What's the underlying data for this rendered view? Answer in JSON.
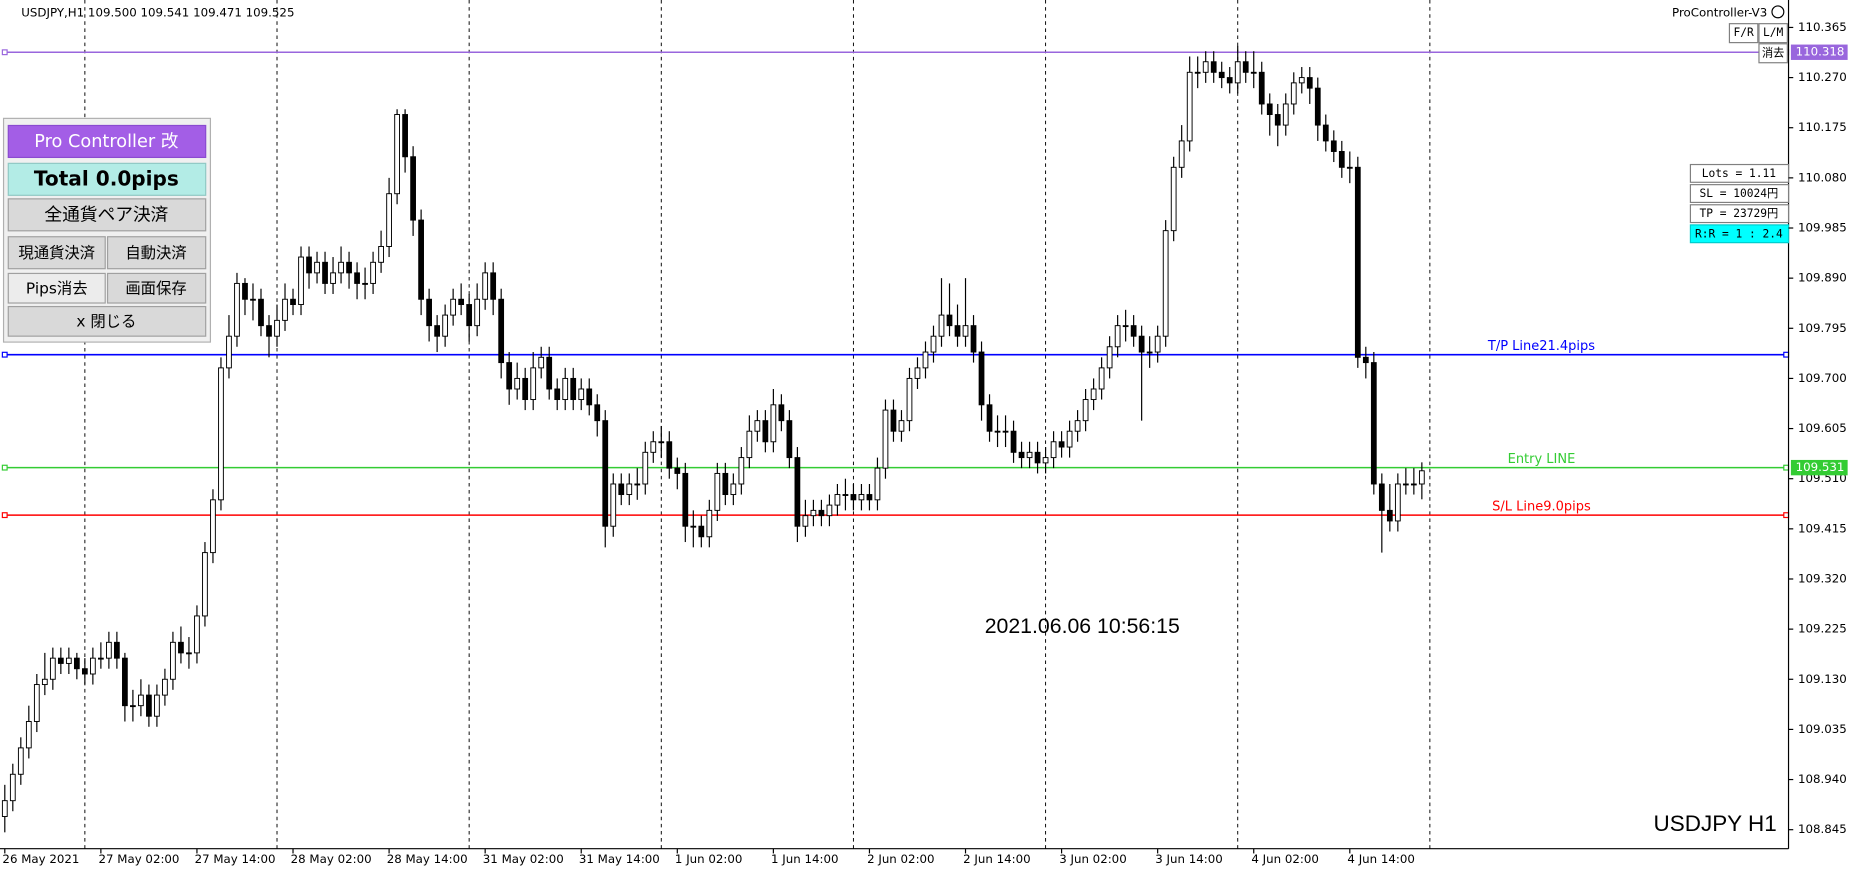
{
  "chart_data": {
    "type": "candlestick",
    "header": "USDJPY,H1  109.500 109.541 109.471 109.525",
    "timestamp": "2021.06.06 10:56:15",
    "watermark": "USDJPY H1",
    "up_color": "#ffffff",
    "down_color": "#000000",
    "grid": false,
    "open": [
      108.87,
      108.9,
      108.95,
      109.0,
      109.05,
      109.12,
      109.13,
      109.17,
      109.16,
      109.17,
      109.15,
      109.14,
      109.17,
      109.17,
      109.2,
      109.17,
      109.08,
      109.08,
      109.1,
      109.06,
      109.1,
      109.13,
      109.2,
      109.18,
      109.18,
      109.25,
      109.37,
      109.47,
      109.72,
      109.78,
      109.88,
      109.85,
      109.85,
      109.8,
      109.78,
      109.81,
      109.85,
      109.84,
      109.93,
      109.9,
      109.92,
      109.88,
      109.9,
      109.92,
      109.9,
      109.88,
      109.88,
      109.92,
      109.95,
      110.05,
      110.2,
      110.12,
      110.0,
      109.85,
      109.8,
      109.78,
      109.82,
      109.85,
      109.84,
      109.8,
      109.85,
      109.9,
      109.85,
      109.73,
      109.68,
      109.7,
      109.66,
      109.72,
      109.74,
      109.68,
      109.66,
      109.7,
      109.66,
      109.68,
      109.65,
      109.62,
      109.42,
      109.5,
      109.48,
      109.5,
      109.5,
      109.56,
      109.58,
      109.58,
      109.53,
      109.52,
      109.42,
      109.42,
      109.4,
      109.45,
      109.52,
      109.48,
      109.5,
      109.55,
      109.6,
      109.62,
      109.58,
      109.65,
      109.62,
      109.55,
      109.42,
      109.44,
      109.45,
      109.44,
      109.46,
      109.48,
      109.48,
      109.47,
      109.48,
      109.47,
      109.53,
      109.64,
      109.6,
      109.62,
      109.7,
      109.72,
      109.75,
      109.78,
      109.82,
      109.8,
      109.78,
      109.8,
      109.75,
      109.65,
      109.6,
      109.6,
      109.6,
      109.56,
      109.55,
      109.56,
      109.54,
      109.55,
      109.58,
      109.57,
      109.6,
      109.62,
      109.66,
      109.68,
      109.72,
      109.76,
      109.8,
      109.8,
      109.78,
      109.75,
      109.75,
      109.78,
      109.98,
      110.1,
      110.15,
      110.28,
      110.28,
      110.3,
      110.28,
      110.27,
      110.26,
      110.3,
      110.28,
      110.28,
      110.22,
      110.2,
      110.18,
      110.22,
      110.26,
      110.27,
      110.25,
      110.18,
      110.15,
      110.13,
      110.1,
      110.1,
      109.74,
      109.73,
      109.5,
      109.45,
      109.43,
      109.5,
      109.5,
      109.5
    ],
    "high": [
      108.93,
      108.97,
      109.02,
      109.08,
      109.14,
      109.18,
      109.19,
      109.19,
      109.19,
      109.18,
      109.17,
      109.19,
      109.2,
      109.22,
      109.22,
      109.18,
      109.11,
      109.13,
      109.12,
      109.12,
      109.15,
      109.22,
      109.23,
      109.21,
      109.27,
      109.39,
      109.49,
      109.74,
      109.82,
      109.9,
      109.89,
      109.88,
      109.87,
      109.82,
      109.84,
      109.88,
      109.87,
      109.95,
      109.95,
      109.94,
      109.94,
      109.93,
      109.95,
      109.94,
      109.92,
      109.91,
      109.94,
      109.98,
      110.08,
      110.21,
      110.21,
      110.14,
      110.02,
      109.87,
      109.82,
      109.84,
      109.87,
      109.88,
      109.86,
      109.88,
      109.92,
      109.92,
      109.87,
      109.75,
      109.73,
      109.72,
      109.75,
      109.76,
      109.76,
      109.7,
      109.72,
      109.72,
      109.7,
      109.7,
      109.67,
      109.64,
      109.52,
      109.52,
      109.52,
      109.53,
      109.58,
      109.6,
      109.61,
      109.6,
      109.55,
      109.54,
      109.45,
      109.44,
      109.47,
      109.54,
      109.54,
      109.52,
      109.57,
      109.63,
      109.64,
      109.64,
      109.68,
      109.67,
      109.64,
      109.57,
      109.47,
      109.47,
      109.47,
      109.48,
      109.5,
      109.51,
      109.5,
      109.5,
      109.5,
      109.55,
      109.66,
      109.66,
      109.64,
      109.72,
      109.74,
      109.77,
      109.8,
      109.89,
      109.88,
      109.84,
      109.89,
      109.82,
      109.77,
      109.67,
      109.63,
      109.63,
      109.62,
      109.58,
      109.58,
      109.58,
      109.57,
      109.6,
      109.6,
      109.62,
      109.64,
      109.68,
      109.7,
      109.74,
      109.78,
      109.82,
      109.83,
      109.82,
      109.8,
      109.78,
      109.8,
      110.0,
      110.12,
      110.18,
      110.31,
      110.31,
      110.32,
      110.32,
      110.3,
      110.29,
      110.33,
      110.32,
      110.32,
      110.3,
      110.24,
      110.22,
      110.24,
      110.28,
      110.29,
      110.29,
      110.27,
      110.2,
      110.17,
      110.15,
      110.13,
      110.12,
      109.76,
      109.75,
      109.52,
      109.5,
      109.52,
      109.53,
      109.53,
      109.541
    ],
    "low": [
      108.84,
      108.88,
      108.93,
      108.98,
      109.03,
      109.1,
      109.11,
      109.14,
      109.14,
      109.13,
      109.12,
      109.12,
      109.15,
      109.15,
      109.15,
      109.05,
      109.05,
      109.06,
      109.04,
      109.04,
      109.08,
      109.11,
      109.16,
      109.15,
      109.16,
      109.23,
      109.35,
      109.45,
      109.7,
      109.76,
      109.82,
      109.81,
      109.78,
      109.74,
      109.76,
      109.79,
      109.82,
      109.82,
      109.87,
      109.88,
      109.86,
      109.86,
      109.88,
      109.87,
      109.85,
      109.85,
      109.86,
      109.9,
      109.93,
      110.03,
      110.09,
      109.97,
      109.82,
      109.77,
      109.75,
      109.76,
      109.8,
      109.82,
      109.77,
      109.78,
      109.83,
      109.82,
      109.7,
      109.65,
      109.66,
      109.64,
      109.64,
      109.7,
      109.66,
      109.64,
      109.64,
      109.64,
      109.64,
      109.63,
      109.59,
      109.38,
      109.4,
      109.46,
      109.46,
      109.47,
      109.48,
      109.54,
      109.55,
      109.51,
      109.49,
      109.39,
      109.38,
      109.38,
      109.38,
      109.43,
      109.46,
      109.46,
      109.48,
      109.53,
      109.58,
      109.56,
      109.56,
      109.6,
      109.53,
      109.39,
      109.4,
      109.42,
      109.42,
      109.42,
      109.44,
      109.45,
      109.45,
      109.45,
      109.45,
      109.45,
      109.51,
      109.58,
      109.58,
      109.6,
      109.68,
      109.7,
      109.73,
      109.76,
      109.78,
      109.76,
      109.76,
      109.73,
      109.62,
      109.58,
      109.57,
      109.57,
      109.54,
      109.53,
      109.53,
      109.52,
      109.52,
      109.53,
      109.55,
      109.55,
      109.58,
      109.6,
      109.64,
      109.66,
      109.7,
      109.74,
      109.77,
      109.76,
      109.62,
      109.72,
      109.73,
      109.76,
      109.96,
      110.08,
      110.13,
      110.25,
      110.26,
      110.26,
      110.25,
      110.24,
      110.24,
      110.26,
      110.25,
      110.2,
      110.16,
      110.14,
      110.16,
      110.2,
      110.24,
      110.22,
      110.15,
      110.13,
      110.11,
      110.08,
      110.07,
      109.72,
      109.7,
      109.48,
      109.37,
      109.41,
      109.41,
      109.48,
      109.48,
      109.471
    ],
    "close": [
      108.9,
      108.95,
      109.0,
      109.05,
      109.12,
      109.13,
      109.17,
      109.16,
      109.17,
      109.15,
      109.14,
      109.17,
      109.17,
      109.2,
      109.17,
      109.08,
      109.08,
      109.1,
      109.06,
      109.1,
      109.13,
      109.2,
      109.18,
      109.18,
      109.25,
      109.37,
      109.47,
      109.72,
      109.78,
      109.88,
      109.85,
      109.85,
      109.8,
      109.78,
      109.81,
      109.85,
      109.84,
      109.93,
      109.9,
      109.92,
      109.88,
      109.9,
      109.92,
      109.9,
      109.88,
      109.88,
      109.92,
      109.95,
      110.05,
      110.2,
      110.12,
      110.0,
      109.85,
      109.8,
      109.78,
      109.82,
      109.85,
      109.84,
      109.8,
      109.85,
      109.9,
      109.85,
      109.73,
      109.68,
      109.7,
      109.66,
      109.72,
      109.74,
      109.68,
      109.66,
      109.7,
      109.66,
      109.68,
      109.65,
      109.62,
      109.42,
      109.5,
      109.48,
      109.5,
      109.5,
      109.56,
      109.58,
      109.58,
      109.53,
      109.52,
      109.42,
      109.42,
      109.4,
      109.45,
      109.52,
      109.48,
      109.5,
      109.55,
      109.6,
      109.62,
      109.58,
      109.65,
      109.62,
      109.55,
      109.42,
      109.44,
      109.45,
      109.44,
      109.46,
      109.48,
      109.48,
      109.47,
      109.48,
      109.47,
      109.53,
      109.64,
      109.6,
      109.62,
      109.7,
      109.72,
      109.75,
      109.78,
      109.82,
      109.8,
      109.78,
      109.8,
      109.75,
      109.65,
      109.6,
      109.6,
      109.6,
      109.56,
      109.55,
      109.56,
      109.54,
      109.55,
      109.58,
      109.57,
      109.6,
      109.62,
      109.66,
      109.68,
      109.72,
      109.76,
      109.8,
      109.8,
      109.78,
      109.75,
      109.75,
      109.78,
      109.98,
      110.1,
      110.15,
      110.28,
      110.28,
      110.3,
      110.28,
      110.27,
      110.26,
      110.3,
      110.28,
      110.28,
      110.22,
      110.2,
      110.18,
      110.22,
      110.26,
      110.27,
      110.25,
      110.18,
      110.15,
      110.13,
      110.1,
      110.1,
      109.74,
      109.73,
      109.5,
      109.45,
      109.43,
      109.5,
      109.5,
      109.5,
      109.525
    ],
    "xlim": [
      -0.6,
      222.8
    ],
    "xticks": [
      {
        "value": 0,
        "label": "26 May 2021"
      },
      {
        "value": 12,
        "label": "27 May 02:00"
      },
      {
        "value": 24,
        "label": "27 May 14:00"
      },
      {
        "value": 36,
        "label": "28 May 02:00"
      },
      {
        "value": 48,
        "label": "28 May 14:00"
      },
      {
        "value": 60,
        "label": "31 May 02:00"
      },
      {
        "value": 72,
        "label": "31 May 14:00"
      },
      {
        "value": 84,
        "label": "1 Jun 02:00"
      },
      {
        "value": 96,
        "label": "1 Jun 14:00"
      },
      {
        "value": 108,
        "label": "2 Jun 02:00"
      },
      {
        "value": 120,
        "label": "2 Jun 14:00"
      },
      {
        "value": 132,
        "label": "3 Jun 02:00"
      },
      {
        "value": 144,
        "label": "3 Jun 14:00"
      },
      {
        "value": 156,
        "label": "4 Jun 02:00"
      },
      {
        "value": 168,
        "label": "4 Jun 14:00"
      }
    ],
    "separators": [
      10,
      34,
      58,
      82,
      106,
      130,
      154,
      178
    ],
    "ylim": [
      108.809,
      110.417
    ],
    "yticks": [
      110.365,
      {
        "value": 110.27,
        "label": "110.270"
      },
      110.175,
      {
        "value": 110.08,
        "label": "110.080"
      },
      109.985,
      {
        "value": 109.89,
        "label": "109.890"
      },
      109.795,
      {
        "value": 109.7,
        "label": "109.700"
      },
      109.605,
      {
        "value": 109.51,
        "label": "109.510"
      },
      109.415,
      {
        "value": 109.32,
        "label": "109.320"
      },
      109.225,
      {
        "value": 109.13,
        "label": "109.130"
      },
      109.035,
      {
        "value": 108.94,
        "label": "108.940"
      },
      108.845
    ],
    "hlines": [
      {
        "value": 110.318,
        "color": "#9966dd",
        "axis_label": true
      },
      {
        "name": "T/P Line21.4pips",
        "value": 109.745,
        "color": "#0000ff",
        "axis_label": false
      },
      {
        "name": "Entry LINE",
        "value": 109.531,
        "color": "#33cc33",
        "axis_label": true
      },
      {
        "name": "S/L Line9.0pips",
        "value": 109.441,
        "color": "#ff0000",
        "axis_label": false
      }
    ]
  },
  "panel": {
    "title": "Pro Controller 改",
    "total": "Total   0.0pips",
    "close_all": "全通貨ペア決済",
    "close_current": "現通貨決済",
    "auto_close": "自動決済",
    "clear_pips": "Pips消去",
    "save_screen": "画面保存",
    "close": "x 閉じる"
  },
  "toolbar": {
    "title": "ProController-V3",
    "fr": "F/R",
    "lm": "L/M",
    "clear": "消去"
  },
  "info": {
    "lots": "Lots = 1.11",
    "sl": "SL = 10024円",
    "tp": "TP = 23729円",
    "rr": "R:R = 1 : 2.4"
  }
}
